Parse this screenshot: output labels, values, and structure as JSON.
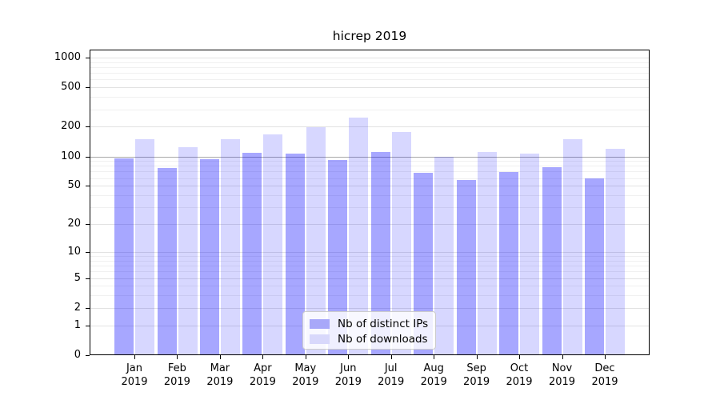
{
  "chart_data": {
    "type": "bar",
    "title": "hicrep 2019",
    "categories": [
      "Jan 2019",
      "Feb 2019",
      "Mar 2019",
      "Apr 2019",
      "May 2019",
      "Jun 2019",
      "Jul 2019",
      "Aug 2019",
      "Sep 2019",
      "Oct 2019",
      "Nov 2019",
      "Dec 2019"
    ],
    "series": [
      {
        "name": "Nb of distinct IPs",
        "color_hex": "#a8a8f9",
        "fill": "rgba(0,0,255,0.345)",
        "values": [
          95,
          76,
          93,
          109,
          107,
          92,
          111,
          68,
          57,
          69,
          77,
          60
        ]
      },
      {
        "name": "Nb of downloads",
        "color_hex": "#d8d8fb",
        "fill": "rgba(0,0,255,0.155)",
        "values": [
          150,
          125,
          150,
          167,
          197,
          248,
          177,
          99,
          111,
          107,
          149,
          119
        ]
      }
    ],
    "xlabel": "",
    "ylabel": "",
    "yscale": "log1p",
    "ylim": [
      0,
      1200
    ],
    "y_ticks": [
      0,
      1,
      2,
      5,
      10,
      20,
      50,
      100,
      200,
      500,
      1000
    ],
    "y_minor_ticks": [
      3,
      4,
      6,
      7,
      8,
      9,
      30,
      40,
      60,
      70,
      80,
      90,
      300,
      400,
      600,
      700,
      800,
      900
    ],
    "reference_line": {
      "value": 100,
      "color_hex": "#a8a8a8"
    },
    "grid": "both",
    "legend_position": "lower center"
  }
}
